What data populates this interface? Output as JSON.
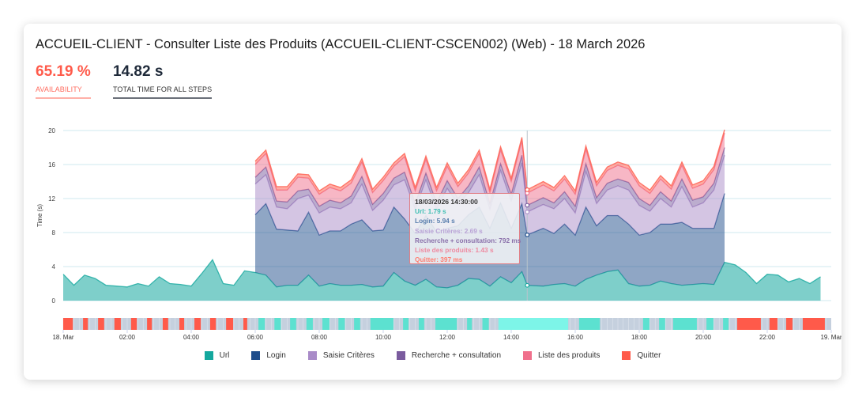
{
  "header": {
    "title": "ACCUEIL-CLIENT - Consulter Liste des Produits (ACCUEIL-CLIENT-CSCEN002) (Web) - 18 March 2026"
  },
  "metrics": [
    {
      "value": "65.19 %",
      "label": "AVAILABILITY"
    },
    {
      "value": "14.82 s",
      "label": "TOTAL TIME FOR ALL STEPS"
    }
  ],
  "tooltip": {
    "time": "18/03/2026 14:30:00",
    "lines": [
      "Url: 1.79 s",
      "Login: 5.94 s",
      "Saisie Critères: 2.69 s",
      "Recherche + consultation: 792 ms",
      "Liste des produits: 1.43 s",
      "Quitter: 397 ms"
    ]
  },
  "chart_data": {
    "type": "area",
    "stacked": true,
    "ylabel": "Time (s)",
    "ylim": [
      0,
      20
    ],
    "yticks": [
      0,
      4,
      8,
      12,
      16,
      20
    ],
    "grid": true,
    "xlim": [
      "00:00",
      "24:00"
    ],
    "xtick_labels": [
      "18. Mar",
      "02:00",
      "04:00",
      "06:00",
      "08:00",
      "10:00",
      "12:00",
      "14:00",
      "16:00",
      "18:00",
      "20:00",
      "22:00",
      "19. Mar"
    ],
    "xtick_hours": [
      0,
      2,
      4,
      6,
      8,
      10,
      12,
      14,
      16,
      18,
      20,
      22,
      24
    ],
    "legend_position": "bottom",
    "hover_time": "14:30",
    "x": [
      "00:00",
      "00:20",
      "00:40",
      "01:00",
      "01:20",
      "01:40",
      "02:00",
      "02:20",
      "02:40",
      "03:00",
      "03:20",
      "03:40",
      "04:00",
      "04:20",
      "04:40",
      "05:00",
      "05:20",
      "05:40",
      "06:00",
      "06:20",
      "06:40",
      "07:00",
      "07:20",
      "07:40",
      "08:00",
      "08:20",
      "08:40",
      "09:00",
      "09:20",
      "09:40",
      "10:00",
      "10:20",
      "10:40",
      "11:00",
      "11:20",
      "11:40",
      "12:00",
      "12:20",
      "12:40",
      "13:00",
      "13:20",
      "13:40",
      "14:00",
      "14:20",
      "14:30",
      "15:00",
      "15:20",
      "15:40",
      "16:00",
      "16:20",
      "16:40",
      "17:00",
      "17:20",
      "17:40",
      "18:00",
      "18:20",
      "18:40",
      "19:00",
      "19:20",
      "19:40",
      "20:00",
      "20:20",
      "20:40",
      "21:00",
      "21:20",
      "21:40",
      "22:00",
      "22:20",
      "22:40",
      "23:00",
      "23:20",
      "23:40"
    ],
    "series": [
      {
        "name": "Url",
        "color": "#14a89e",
        "values": [
          3.1,
          1.8,
          3.0,
          2.6,
          1.8,
          1.7,
          1.6,
          2.0,
          1.7,
          2.8,
          2.0,
          1.9,
          1.7,
          3.2,
          4.8,
          2.0,
          1.8,
          3.5,
          3.3,
          3.0,
          1.6,
          1.8,
          1.8,
          3.0,
          1.7,
          2.0,
          1.8,
          1.8,
          1.9,
          1.6,
          1.7,
          3.3,
          2.3,
          1.8,
          2.5,
          1.6,
          1.5,
          1.8,
          2.6,
          2.5,
          1.7,
          2.8,
          2.1,
          3.4,
          1.79,
          1.7,
          1.9,
          2.0,
          1.7,
          2.5,
          3.0,
          3.4,
          3.6,
          2.0,
          1.7,
          1.8,
          2.3,
          2.0,
          1.8,
          1.9,
          2.0,
          1.9,
          4.5,
          4.2,
          3.3,
          2.0,
          3.1,
          3.0,
          2.2,
          2.6,
          2.0,
          2.8
        ]
      },
      {
        "name": "Login",
        "color": "#1f4e8c",
        "values": [
          null,
          null,
          null,
          null,
          null,
          null,
          null,
          null,
          null,
          null,
          null,
          null,
          null,
          null,
          null,
          null,
          null,
          null,
          6.8,
          8.4,
          6.8,
          6.5,
          6.4,
          7.4,
          6.0,
          6.2,
          6.4,
          7.2,
          7.6,
          6.6,
          6.6,
          7.7,
          7.3,
          6.1,
          7.5,
          6.5,
          7.0,
          7.0,
          7.5,
          8.5,
          6.8,
          8.7,
          6.4,
          8.0,
          5.94,
          6.8,
          6.0,
          7.0,
          6.0,
          8.5,
          5.8,
          6.6,
          6.4,
          7.0,
          6.0,
          6.2,
          6.7,
          7.0,
          7.4,
          6.6,
          6.5,
          6.6,
          8.1,
          null,
          null,
          null,
          null,
          null,
          null,
          null,
          null,
          null
        ]
      },
      {
        "name": "Saisie Critères",
        "color": "#a98bc8",
        "values": [
          null,
          null,
          null,
          null,
          null,
          null,
          null,
          null,
          null,
          null,
          null,
          null,
          null,
          null,
          null,
          null,
          null,
          null,
          3.6,
          3.4,
          2.6,
          2.5,
          3.8,
          2.0,
          2.6,
          2.8,
          2.6,
          2.5,
          4.2,
          2.4,
          3.5,
          2.6,
          4.6,
          2.8,
          4.2,
          2.6,
          4.7,
          2.5,
          2.6,
          3.8,
          2.2,
          3.8,
          3.2,
          4.8,
          2.69,
          2.8,
          2.9,
          3.0,
          2.6,
          4.2,
          2.6,
          3.0,
          3.5,
          4.0,
          3.5,
          2.5,
          3.0,
          2.0,
          4.2,
          2.5,
          3.0,
          4.5,
          4.5,
          null,
          null,
          null,
          null,
          null,
          null,
          null,
          null,
          null
        ]
      },
      {
        "name": "Recherche + consultation",
        "color": "#7a5b9e",
        "values": [
          null,
          null,
          null,
          null,
          null,
          null,
          null,
          null,
          null,
          null,
          null,
          null,
          null,
          null,
          null,
          null,
          null,
          null,
          0.8,
          0.9,
          0.7,
          0.8,
          0.9,
          0.7,
          0.8,
          0.8,
          0.7,
          0.8,
          0.9,
          0.7,
          0.8,
          0.8,
          0.9,
          0.7,
          0.8,
          0.8,
          0.9,
          0.7,
          0.8,
          0.9,
          0.7,
          0.8,
          0.8,
          0.9,
          0.792,
          0.8,
          0.7,
          0.8,
          0.8,
          0.9,
          0.7,
          0.8,
          0.8,
          0.9,
          0.8,
          0.7,
          0.8,
          0.7,
          0.9,
          0.8,
          0.7,
          0.8,
          0.9,
          null,
          null,
          null,
          null,
          null,
          null,
          null,
          null,
          null
        ]
      },
      {
        "name": "Liste des produits",
        "color": "#f0708c",
        "values": [
          null,
          null,
          null,
          null,
          null,
          null,
          null,
          null,
          null,
          null,
          null,
          null,
          null,
          null,
          null,
          null,
          null,
          null,
          1.5,
          1.6,
          1.3,
          1.4,
          1.6,
          1.3,
          1.4,
          1.5,
          1.4,
          1.5,
          1.7,
          1.4,
          1.5,
          1.4,
          1.8,
          1.5,
          1.6,
          1.4,
          1.7,
          1.4,
          1.5,
          1.6,
          1.3,
          1.6,
          1.5,
          1.7,
          1.43,
          1.5,
          1.4,
          1.5,
          1.4,
          1.7,
          1.4,
          1.5,
          1.6,
          1.6,
          1.5,
          1.4,
          1.5,
          1.4,
          1.6,
          1.4,
          1.5,
          1.6,
          1.7,
          null,
          null,
          null,
          null,
          null,
          null,
          null,
          null,
          null
        ]
      },
      {
        "name": "Quitter",
        "color": "#ff5a4a",
        "values": [
          null,
          null,
          null,
          null,
          null,
          null,
          null,
          null,
          null,
          null,
          null,
          null,
          null,
          null,
          null,
          null,
          null,
          null,
          0.4,
          0.4,
          0.4,
          0.4,
          0.4,
          0.4,
          0.4,
          0.4,
          0.4,
          0.4,
          0.4,
          0.4,
          0.4,
          0.4,
          0.4,
          0.4,
          0.4,
          0.4,
          0.4,
          0.4,
          0.4,
          0.4,
          0.4,
          0.4,
          0.4,
          0.4,
          0.397,
          0.4,
          0.4,
          0.4,
          0.4,
          0.4,
          0.4,
          0.4,
          0.4,
          0.4,
          0.4,
          0.4,
          0.4,
          0.4,
          0.4,
          0.4,
          0.4,
          0.4,
          0.4,
          null,
          null,
          null,
          null,
          null,
          null,
          null,
          null,
          null
        ]
      }
    ],
    "availability_colors": {
      "failed": "#ff5a4a",
      "success": "#5ce1d0",
      "partial": "#7df5e8",
      "none": "#c5d0de"
    },
    "availability": [
      {
        "from": 0,
        "to": 0.3,
        "status": "failed"
      },
      {
        "from": 0.62,
        "to": 0.77,
        "status": "failed"
      },
      {
        "from": 1.09,
        "to": 1.28,
        "status": "failed"
      },
      {
        "from": 1.6,
        "to": 1.8,
        "status": "failed"
      },
      {
        "from": 2.12,
        "to": 2.3,
        "status": "failed"
      },
      {
        "from": 2.62,
        "to": 2.77,
        "status": "failed"
      },
      {
        "from": 3.11,
        "to": 3.28,
        "status": "failed"
      },
      {
        "from": 3.63,
        "to": 3.78,
        "status": "failed"
      },
      {
        "from": 4.1,
        "to": 4.3,
        "status": "failed"
      },
      {
        "from": 4.59,
        "to": 4.77,
        "status": "failed"
      },
      {
        "from": 5.09,
        "to": 5.31,
        "status": "failed"
      },
      {
        "from": 5.63,
        "to": 5.75,
        "status": "failed"
      },
      {
        "from": 6.1,
        "to": 6.3,
        "status": "success"
      },
      {
        "from": 6.6,
        "to": 6.8,
        "status": "success"
      },
      {
        "from": 7.09,
        "to": 7.28,
        "status": "success"
      },
      {
        "from": 7.6,
        "to": 7.8,
        "status": "success"
      },
      {
        "from": 8.1,
        "to": 8.32,
        "status": "success"
      },
      {
        "from": 8.6,
        "to": 8.8,
        "status": "success"
      },
      {
        "from": 9.09,
        "to": 9.28,
        "status": "success"
      },
      {
        "from": 9.6,
        "to": 10.32,
        "status": "success"
      },
      {
        "from": 10.62,
        "to": 10.79,
        "status": "success"
      },
      {
        "from": 11.11,
        "to": 11.28,
        "status": "success"
      },
      {
        "from": 11.63,
        "to": 12.3,
        "status": "success"
      },
      {
        "from": 12.62,
        "to": 12.77,
        "status": "success"
      },
      {
        "from": 13.1,
        "to": 13.3,
        "status": "success"
      },
      {
        "from": 13.6,
        "to": 15.78,
        "status": "partial"
      },
      {
        "from": 16.12,
        "to": 16.77,
        "status": "success"
      },
      {
        "from": 18.12,
        "to": 18.32,
        "status": "success"
      },
      {
        "from": 18.62,
        "to": 18.81,
        "status": "success"
      },
      {
        "from": 19.06,
        "to": 19.8,
        "status": "success"
      },
      {
        "from": 20.1,
        "to": 20.32,
        "status": "success"
      },
      {
        "from": 20.62,
        "to": 20.79,
        "status": "success"
      },
      {
        "from": 21.06,
        "to": 21.8,
        "status": "failed"
      },
      {
        "from": 22.07,
        "to": 22.32,
        "status": "failed"
      },
      {
        "from": 22.59,
        "to": 22.79,
        "status": "failed"
      },
      {
        "from": 23.11,
        "to": 23.8,
        "status": "failed"
      }
    ]
  }
}
